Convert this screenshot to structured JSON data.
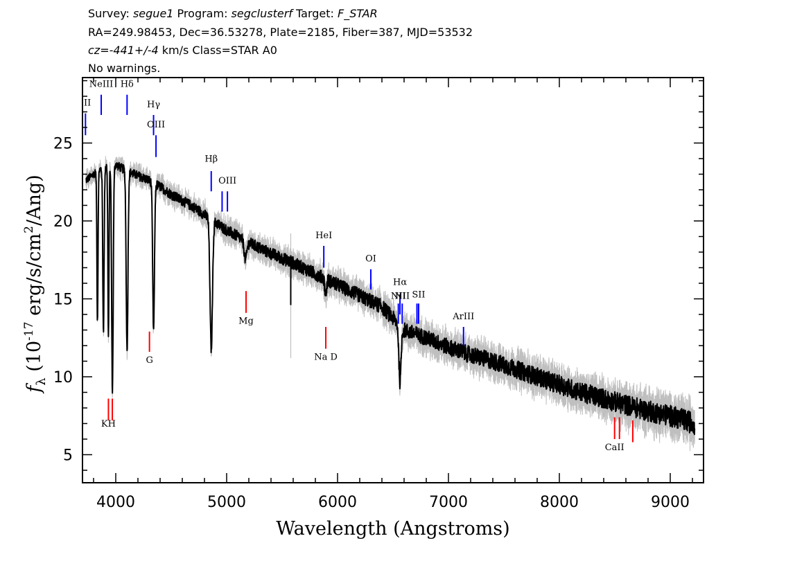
{
  "header": {
    "line1": {
      "survey_label": "Survey: ",
      "survey": "segue1",
      "program_label": " Program: ",
      "program": "segclusterf",
      "target_label": " Target: ",
      "target": "F_STAR"
    },
    "line2": "RA=249.98453, Dec=36.53278, Plate=2185, Fiber=387, MJD=53532",
    "line3": {
      "cz": "cz=-441+/-4",
      "rest": " km/s Class=STAR A0"
    },
    "line4": "No warnings."
  },
  "colors": {
    "spectrum": "#000000",
    "error_band": "#bfbfbf",
    "emission_marker": "#0000ff",
    "absorption_marker": "#ff0000"
  },
  "chart_data": {
    "type": "line",
    "xlabel": "Wavelength (Angstroms)",
    "ylabel_main": "f",
    "ylabel_sub": "λ",
    "ylabel_rest": " (10",
    "ylabel_exp": "-17",
    "ylabel_units": " erg/s/cm",
    "ylabel_units_exp": "2",
    "ylabel_end": "/Ang)",
    "xlim": [
      3700,
      9300
    ],
    "ylim": [
      3.2,
      29.2
    ],
    "x_ticks": [
      "4000",
      "5000",
      "6000",
      "7000",
      "8000",
      "9000"
    ],
    "y_ticks": [
      "5",
      "10",
      "15",
      "20",
      "25"
    ],
    "x_minor_step": 200,
    "y_minor_step": 1,
    "continuum": [
      [
        3730,
        22.6
      ],
      [
        3800,
        23.0
      ],
      [
        3900,
        23.5
      ],
      [
        4000,
        23.6
      ],
      [
        4100,
        23.2
      ],
      [
        4200,
        22.9
      ],
      [
        4300,
        22.6
      ],
      [
        4400,
        22.2
      ],
      [
        4500,
        21.7
      ],
      [
        4600,
        21.3
      ],
      [
        4700,
        20.9
      ],
      [
        4800,
        20.4
      ],
      [
        4900,
        19.9
      ],
      [
        5000,
        19.4
      ],
      [
        5200,
        18.6
      ],
      [
        5400,
        17.9
      ],
      [
        5600,
        17.3
      ],
      [
        5800,
        16.6
      ],
      [
        6000,
        15.9
      ],
      [
        6200,
        15.2
      ],
      [
        6400,
        14.5
      ],
      [
        6600,
        13.0
      ],
      [
        6800,
        12.5
      ],
      [
        7000,
        11.9
      ],
      [
        7200,
        11.4
      ],
      [
        7400,
        11.0
      ],
      [
        7600,
        10.5
      ],
      [
        7800,
        10.0
      ],
      [
        8000,
        9.5
      ],
      [
        8200,
        9.0
      ],
      [
        8400,
        8.6
      ],
      [
        8600,
        8.2
      ],
      [
        8800,
        7.8
      ],
      [
        9000,
        7.5
      ],
      [
        9220,
        7.0
      ]
    ],
    "absorption_features": [
      {
        "center": 3835,
        "depth": 9.5,
        "width": 5
      },
      {
        "center": 3889,
        "depth": 10.5,
        "width": 6
      },
      {
        "center": 3934,
        "depth": 11.0,
        "width": 5
      },
      {
        "center": 3970,
        "depth": 14.5,
        "width": 7
      },
      {
        "center": 4102,
        "depth": 11.5,
        "width": 8
      },
      {
        "center": 4341,
        "depth": 9.5,
        "width": 8
      },
      {
        "center": 4861,
        "depth": 8.3,
        "width": 11
      },
      {
        "center": 5170,
        "depth": 1.2,
        "width": 12
      },
      {
        "center": 5893,
        "depth": 1.0,
        "width": 8
      },
      {
        "center": 6563,
        "depth": 3.6,
        "width": 10
      }
    ],
    "noise_amplitude": 0.25,
    "error_band_scale": 0.45,
    "spike": {
      "x": 5578,
      "low": 11.2,
      "high": 19.2
    },
    "emission_lines": [
      {
        "label": "II",
        "x": 3727,
        "ylow": 25.5,
        "yhigh": 26.9,
        "label_y": 27.4
      },
      {
        "label": "NeIII",
        "x": 3869,
        "ylow": 26.8,
        "yhigh": 28.1,
        "label_y": 28.6
      },
      {
        "label": "Hδ",
        "x": 4102,
        "ylow": 26.8,
        "yhigh": 28.1,
        "label_y": 28.6
      },
      {
        "label": "Hγ",
        "x": 4341,
        "ylow": 25.5,
        "yhigh": 26.8,
        "label_y": 27.3
      },
      {
        "label": "OIII",
        "x": 4363,
        "ylow": 24.1,
        "yhigh": 25.5,
        "label_y": 26.0
      },
      {
        "label": "Hβ",
        "x": 4861,
        "ylow": 21.9,
        "yhigh": 23.2,
        "label_y": 23.8
      },
      {
        "label": "OIII",
        "x": 4959,
        "ylow": 20.6,
        "yhigh": 21.9,
        "label_y": null
      },
      {
        "label": "OIII",
        "x": 5007,
        "ylow": 20.6,
        "yhigh": 21.9,
        "label_y": 22.4
      },
      {
        "label": "HeI",
        "x": 5876,
        "ylow": 17.0,
        "yhigh": 18.4,
        "label_y": 18.9
      },
      {
        "label": "OI",
        "x": 6300,
        "ylow": 15.6,
        "yhigh": 16.9,
        "label_y": 17.4
      },
      {
        "label": "NII",
        "x": 6548,
        "ylow": 13.4,
        "yhigh": 14.7,
        "label_y": null
      },
      {
        "label": "Hα",
        "x": 6563,
        "ylow": 14.0,
        "yhigh": 15.3,
        "label_y": 15.9
      },
      {
        "label": "NII",
        "x": 6583,
        "ylow": 13.4,
        "yhigh": 14.7,
        "label_y": 15.0
      },
      {
        "label": "NII",
        "x": 6548,
        "ylow": null,
        "yhigh": null,
        "label_y": 15.0
      },
      {
        "label": "SII",
        "x": 6716,
        "ylow": 13.4,
        "yhigh": 14.7,
        "label_y": null
      },
      {
        "label": "SII",
        "x": 6731,
        "ylow": 13.4,
        "yhigh": 14.7,
        "label_y": 15.1
      },
      {
        "label": "ArIII",
        "x": 7136,
        "ylow": 12.0,
        "yhigh": 13.2,
        "label_y": 13.7
      }
    ],
    "absorption_lines": [
      {
        "label": "KH",
        "x": 3934,
        "ylow": 7.2,
        "yhigh": 8.6,
        "label_y": 6.8
      },
      {
        "label": "",
        "x": 3969,
        "ylow": 7.2,
        "yhigh": 8.6,
        "label_y": null
      },
      {
        "label": "G",
        "x": 4304,
        "ylow": 11.6,
        "yhigh": 12.9,
        "label_y": 10.9
      },
      {
        "label": "Mg",
        "x": 5175,
        "ylow": 14.1,
        "yhigh": 15.5,
        "label_y": 13.4
      },
      {
        "label": "Na D",
        "x": 5894,
        "ylow": 11.8,
        "yhigh": 13.2,
        "label_y": 11.1
      },
      {
        "label": "CaII",
        "x": 8498,
        "ylow": 6.0,
        "yhigh": 7.4,
        "label_y": 5.3
      },
      {
        "label": "",
        "x": 8542,
        "ylow": 6.0,
        "yhigh": 7.4,
        "label_y": null
      },
      {
        "label": "",
        "x": 8662,
        "ylow": 5.8,
        "yhigh": 7.2,
        "label_y": null
      }
    ]
  }
}
